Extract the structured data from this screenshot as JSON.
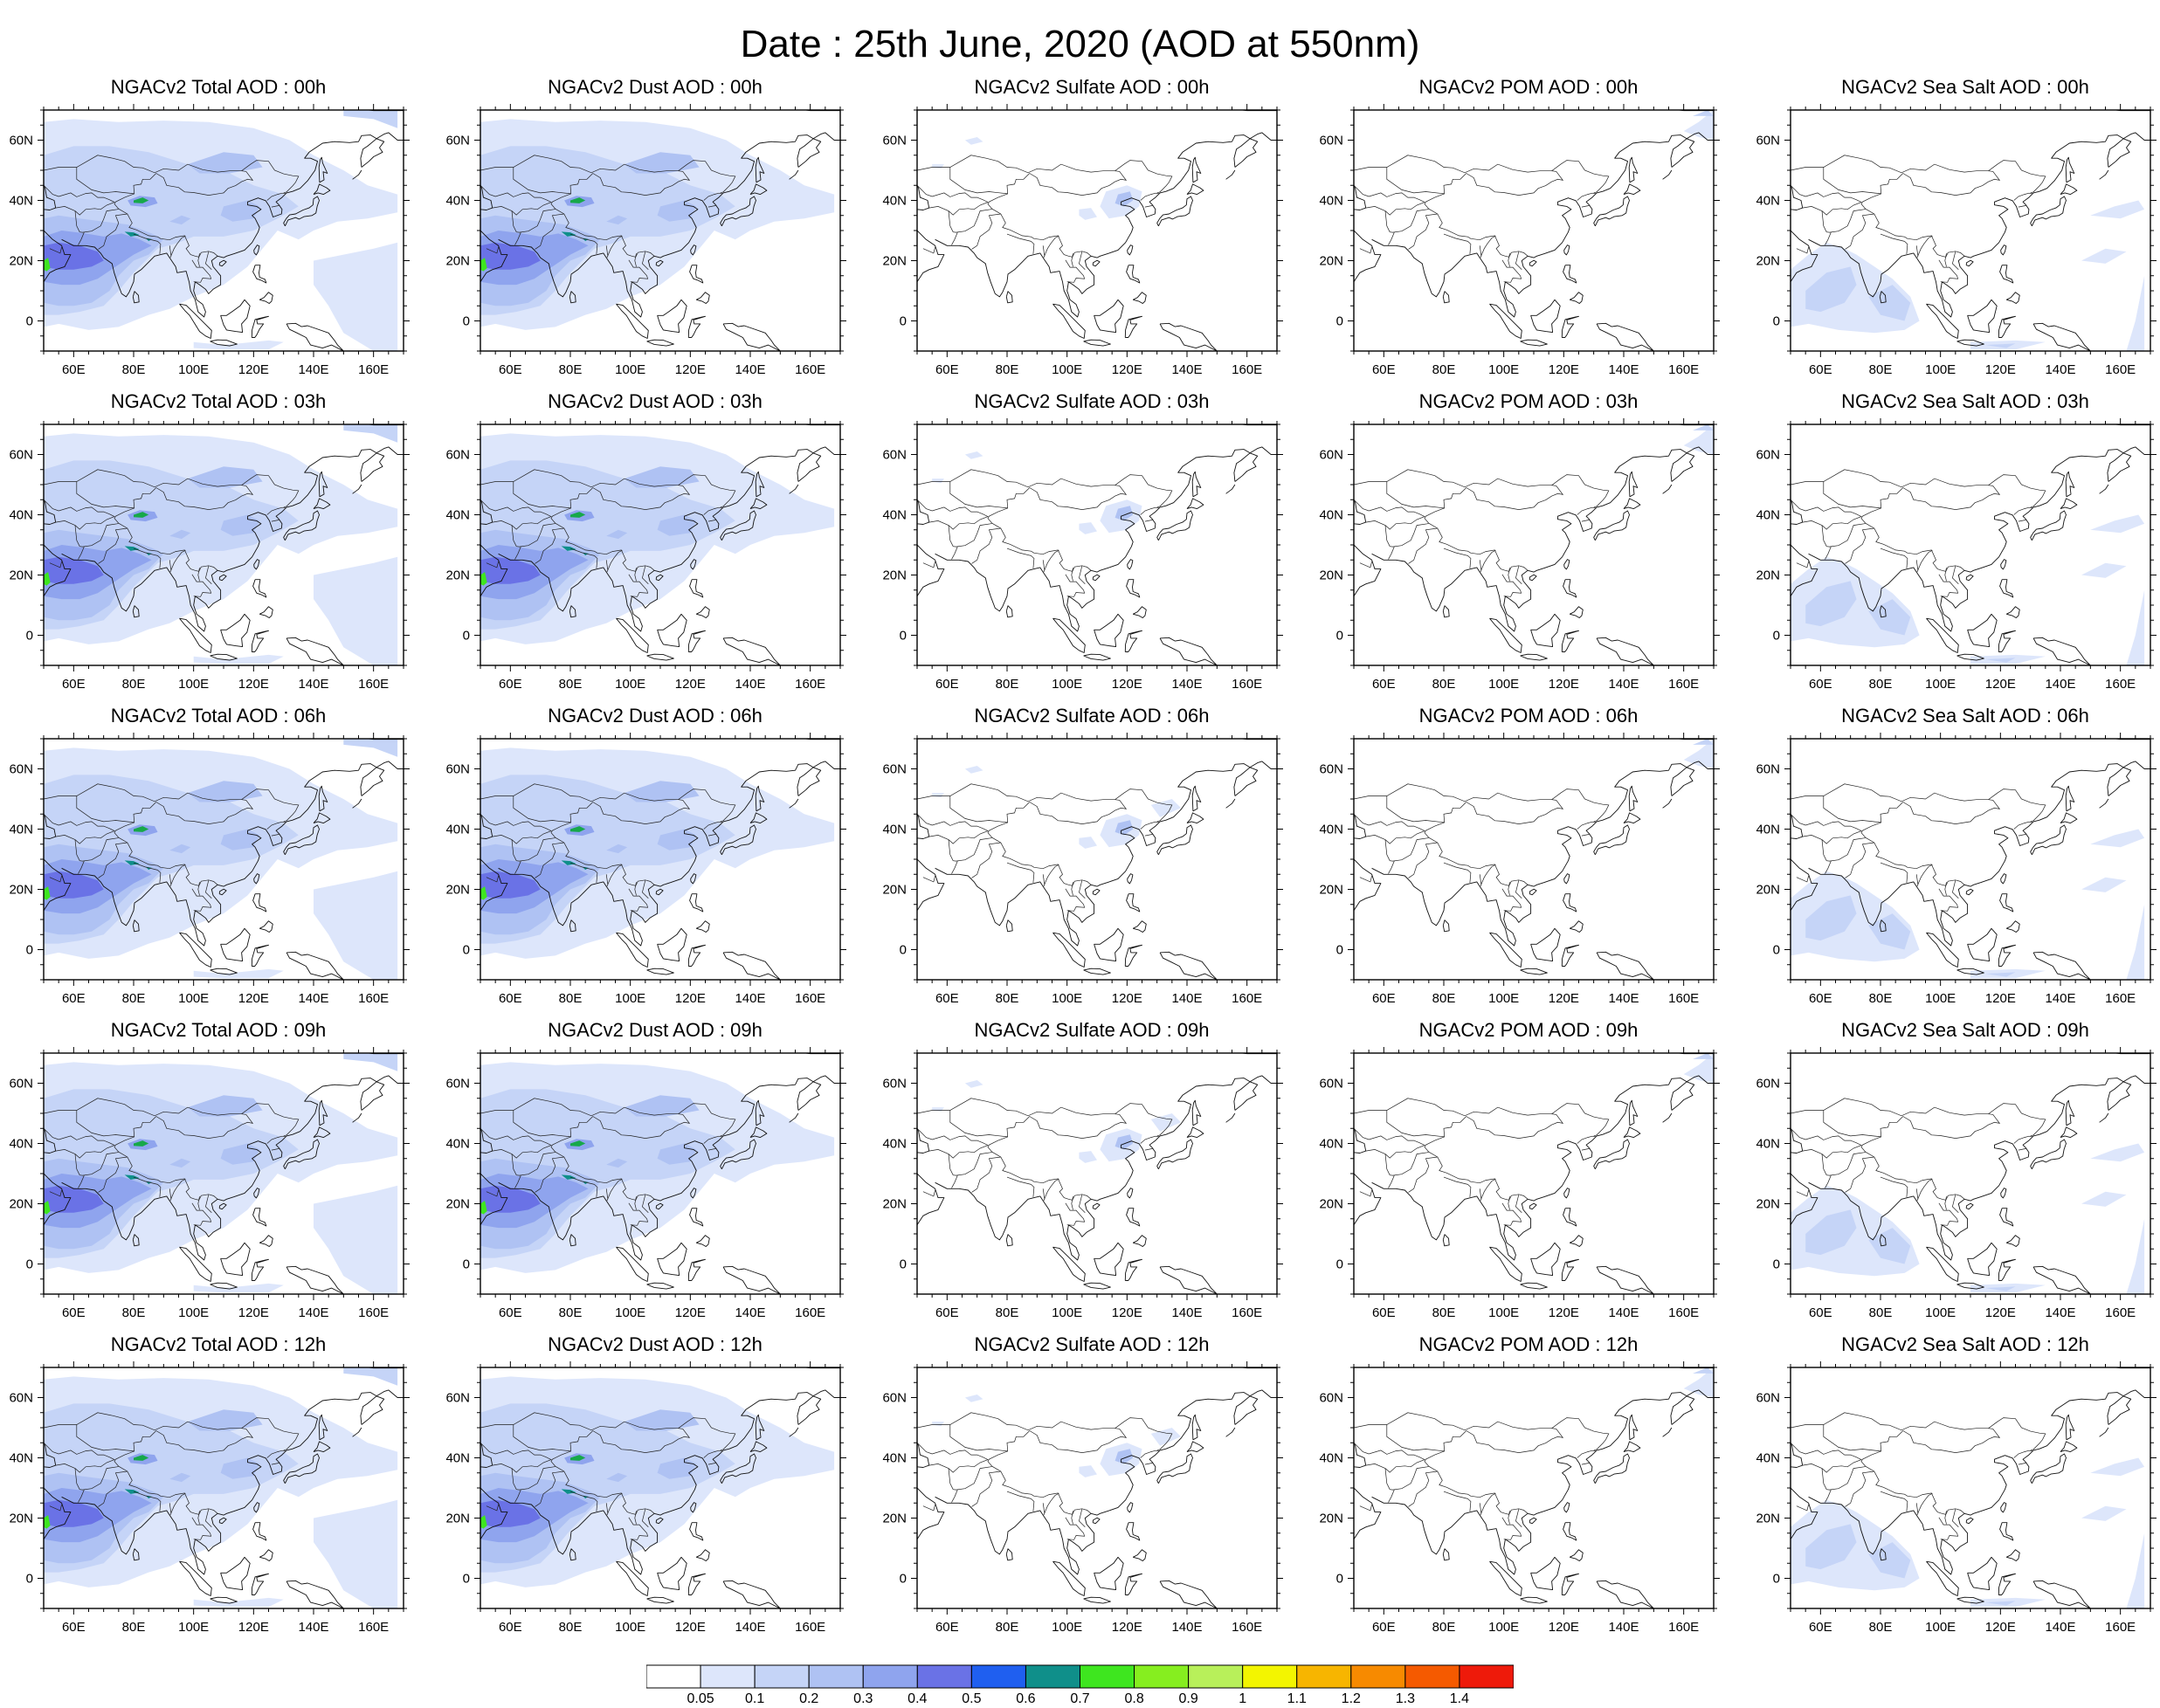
{
  "page": {
    "title": "Date : 25th June, 2020 (AOD at 550nm)"
  },
  "map_axes": {
    "lon_ticks": [
      "60E",
      "80E",
      "100E",
      "120E",
      "140E",
      "160E"
    ],
    "lat_ticks": [
      "60N",
      "40N",
      "20N",
      "0"
    ],
    "lon_range": [
      50,
      170
    ],
    "lat_range": [
      -10,
      70
    ]
  },
  "colorbar": {
    "labels": [
      "0.05",
      "0.1",
      "0.2",
      "0.3",
      "0.4",
      "0.5",
      "0.6",
      "0.7",
      "0.8",
      "0.9",
      "1",
      "1.1",
      "1.2",
      "1.3",
      "1.4"
    ],
    "colors": [
      "#ffffff",
      "#dde6fb",
      "#c5d4f7",
      "#afc2f3",
      "#8fa4ee",
      "#6a72e6",
      "#1f5ff0",
      "#0f8f8a",
      "#3ee61f",
      "#86ee1f",
      "#b8f05a",
      "#f3f500",
      "#f7b500",
      "#f78a00",
      "#f55a00",
      "#ee1a0a"
    ]
  },
  "panels": [
    {
      "title": "NGACv2 Total AOD : 00h",
      "type": "total"
    },
    {
      "title": "NGACv2 Dust AOD : 00h",
      "type": "dust"
    },
    {
      "title": "NGACv2 Sulfate AOD : 00h",
      "type": "sulfate"
    },
    {
      "title": "NGACv2 POM AOD : 00h",
      "type": "pom"
    },
    {
      "title": "NGACv2 Sea Salt AOD : 00h",
      "type": "seasalt"
    },
    {
      "title": "NGACv2 Total AOD : 03h",
      "type": "total"
    },
    {
      "title": "NGACv2 Dust AOD : 03h",
      "type": "dust"
    },
    {
      "title": "NGACv2 Sulfate AOD : 03h",
      "type": "sulfate"
    },
    {
      "title": "NGACv2 POM AOD : 03h",
      "type": "pom"
    },
    {
      "title": "NGACv2 Sea Salt AOD : 03h",
      "type": "seasalt"
    },
    {
      "title": "NGACv2 Total AOD : 06h",
      "type": "total"
    },
    {
      "title": "NGACv2 Dust AOD : 06h",
      "type": "dust"
    },
    {
      "title": "NGACv2 Sulfate AOD : 06h",
      "type": "sulfate"
    },
    {
      "title": "NGACv2 POM AOD : 06h",
      "type": "pom"
    },
    {
      "title": "NGACv2 Sea Salt AOD : 06h",
      "type": "seasalt"
    },
    {
      "title": "NGACv2 Total AOD : 09h",
      "type": "total"
    },
    {
      "title": "NGACv2 Dust AOD : 09h",
      "type": "dust"
    },
    {
      "title": "NGACv2 Sulfate AOD : 09h",
      "type": "sulfate"
    },
    {
      "title": "NGACv2 POM AOD : 09h",
      "type": "pom"
    },
    {
      "title": "NGACv2 Sea Salt  AOD : 09h",
      "type": "seasalt"
    },
    {
      "title": "NGACv2 Total AOD  : 12h",
      "type": "total"
    },
    {
      "title": "NGACv2 Dust AOD : 12h",
      "type": "dust"
    },
    {
      "title": "NGACv2 Sulfate AOD : 12h",
      "type": "sulfate"
    },
    {
      "title": "NGACv2 POM  AOD : 12h",
      "type": "pom"
    },
    {
      "title": "NGACv2 Sea Salt  AOD : 12h",
      "type": "seasalt"
    }
  ]
}
